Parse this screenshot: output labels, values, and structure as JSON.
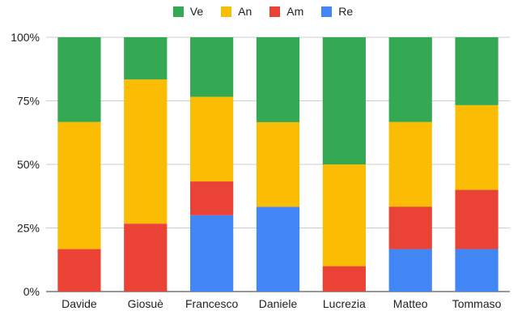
{
  "chart_data": {
    "type": "bar",
    "stacked": true,
    "normalized": true,
    "categories": [
      "Davide",
      "Giosuè",
      "Francesco",
      "Daniele",
      "Lucrezia",
      "Matteo",
      "Tommaso"
    ],
    "series": [
      {
        "name": "Re",
        "color": "#4285F4",
        "values": [
          0,
          0,
          30,
          33.3,
          0,
          16.7,
          16.7
        ]
      },
      {
        "name": "Am",
        "color": "#EA4335",
        "values": [
          16.7,
          26.7,
          13.3,
          0,
          10,
          16.7,
          23.3
        ]
      },
      {
        "name": "An",
        "color": "#FBBC04",
        "values": [
          50,
          56.7,
          33.3,
          33.3,
          40,
          33.3,
          33.3
        ]
      },
      {
        "name": "Ve",
        "color": "#34A853",
        "values": [
          33.3,
          16.6,
          23.4,
          33.4,
          50,
          33.3,
          26.7
        ]
      }
    ],
    "legend_order": [
      "Ve",
      "An",
      "Am",
      "Re"
    ],
    "yticks": [
      "0%",
      "25%",
      "50%",
      "75%",
      "100%"
    ],
    "ylim": [
      0,
      100
    ],
    "grid": true,
    "legend_position": "top"
  }
}
